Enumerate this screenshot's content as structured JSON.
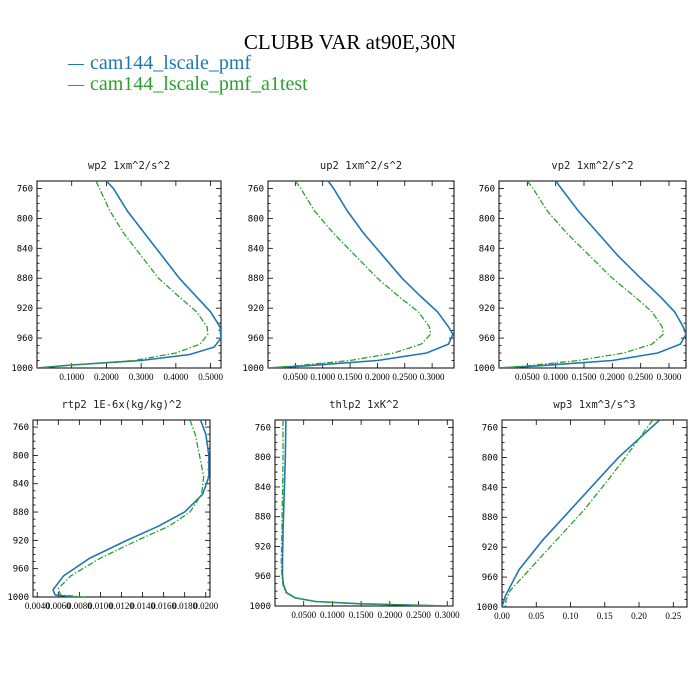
{
  "title": "CLUBB VAR at90E,30N",
  "legend": [
    {
      "label": "cam144_lscale_pmf",
      "color": "#1f77b4"
    },
    {
      "label": "cam144_lscale_pmf_a1test",
      "color": "#2ca02c"
    }
  ],
  "chart_data": [
    {
      "type": "line",
      "title": "wp2  1xm^2/s^2",
      "ylim": [
        1000,
        750
      ],
      "yticks": [
        "760",
        "800",
        "840",
        "880",
        "920",
        "960",
        "1000"
      ],
      "xlim": [
        0,
        0.53
      ],
      "xticks": [
        "0.1000",
        "0.2000",
        "0.3000",
        "0.4000",
        "0.5000"
      ],
      "series": [
        {
          "name": "cam144_lscale_pmf",
          "x": [
            0.2,
            0.22,
            0.26,
            0.31,
            0.36,
            0.41,
            0.46,
            0.5,
            0.527,
            0.53,
            0.51,
            0.44,
            0.3,
            0.1,
            0.0
          ],
          "y": [
            750,
            760,
            790,
            820,
            850,
            880,
            905,
            925,
            945,
            960,
            972,
            982,
            990,
            996,
            1000
          ]
        },
        {
          "name": "cam144_lscale_pmf_a1test",
          "x": [
            0.17,
            0.18,
            0.21,
            0.25,
            0.3,
            0.35,
            0.41,
            0.46,
            0.49,
            0.492,
            0.47,
            0.4,
            0.28,
            0.1,
            0.0
          ],
          "y": [
            750,
            760,
            790,
            820,
            850,
            880,
            905,
            925,
            945,
            955,
            968,
            980,
            990,
            996,
            1000
          ]
        }
      ]
    },
    {
      "type": "line",
      "title": "up2  1xm^2/s^2",
      "ylim": [
        1000,
        750
      ],
      "yticks": [
        "760",
        "800",
        "840",
        "880",
        "920",
        "960",
        "1000"
      ],
      "xlim": [
        0,
        0.34
      ],
      "xticks": [
        "0.0500",
        "0.1000",
        "0.1500",
        "0.2000",
        "0.2500",
        "0.3000"
      ],
      "series": [
        {
          "name": "cam144_lscale_pmf",
          "x": [
            0.11,
            0.12,
            0.145,
            0.175,
            0.21,
            0.245,
            0.28,
            0.31,
            0.33,
            0.338,
            0.33,
            0.29,
            0.2,
            0.07,
            0.0
          ],
          "y": [
            750,
            760,
            790,
            820,
            850,
            880,
            905,
            925,
            945,
            955,
            968,
            980,
            990,
            997,
            1000
          ]
        },
        {
          "name": "cam144_lscale_pmf_a1test",
          "x": [
            0.05,
            0.06,
            0.085,
            0.12,
            0.16,
            0.2,
            0.24,
            0.275,
            0.295,
            0.297,
            0.28,
            0.23,
            0.15,
            0.05,
            0.0
          ],
          "y": [
            750,
            760,
            790,
            820,
            850,
            880,
            905,
            925,
            945,
            955,
            968,
            980,
            990,
            997,
            1000
          ]
        }
      ]
    },
    {
      "type": "line",
      "title": "vp2  1xm^2/s^2",
      "ylim": [
        1000,
        750
      ],
      "yticks": [
        "760",
        "800",
        "840",
        "880",
        "920",
        "960",
        "1000"
      ],
      "xlim": [
        0,
        0.33
      ],
      "xticks": [
        "0.0500",
        "0.1000",
        "0.1500",
        "0.2000",
        "0.2500",
        "0.3000"
      ],
      "series": [
        {
          "name": "cam144_lscale_pmf",
          "x": [
            0.1,
            0.11,
            0.14,
            0.175,
            0.21,
            0.25,
            0.285,
            0.31,
            0.325,
            0.33,
            0.32,
            0.28,
            0.2,
            0.07,
            0.0
          ],
          "y": [
            750,
            760,
            790,
            820,
            850,
            880,
            905,
            925,
            945,
            955,
            968,
            980,
            990,
            997,
            1000
          ]
        },
        {
          "name": "cam144_lscale_pmf_a1test",
          "x": [
            0.05,
            0.06,
            0.085,
            0.12,
            0.16,
            0.2,
            0.24,
            0.27,
            0.288,
            0.29,
            0.27,
            0.22,
            0.14,
            0.05,
            0.0
          ],
          "y": [
            750,
            760,
            790,
            820,
            850,
            880,
            905,
            925,
            945,
            955,
            968,
            980,
            990,
            997,
            1000
          ]
        }
      ]
    },
    {
      "type": "line",
      "title": "rtp2  1E-6x(kg/kg)^2",
      "ylim": [
        1000,
        750
      ],
      "yticks": [
        "760",
        "800",
        "840",
        "880",
        "920",
        "960",
        "1000"
      ],
      "xlim": [
        0.0036,
        0.0204
      ],
      "xticks": [
        "0.0040",
        "0.0060",
        "0.0080",
        "0.0100",
        "0.0120",
        "0.0140",
        "0.0160",
        "0.0180",
        "0.0200"
      ],
      "series": [
        {
          "name": "cam144_lscale_pmf",
          "x": [
            0.0195,
            0.02,
            0.0203,
            0.0203,
            0.0197,
            0.018,
            0.0155,
            0.0125,
            0.009,
            0.0065,
            0.0055,
            0.0057,
            0.0075
          ],
          "y": [
            750,
            770,
            800,
            830,
            855,
            880,
            900,
            920,
            945,
            970,
            990,
            997,
            1000
          ]
        },
        {
          "name": "cam144_lscale_pmf_a1test",
          "x": [
            0.0185,
            0.019,
            0.0194,
            0.0198,
            0.0196,
            0.0185,
            0.0165,
            0.0135,
            0.01,
            0.0072,
            0.006,
            0.0062,
            0.0085
          ],
          "y": [
            750,
            770,
            800,
            830,
            855,
            880,
            900,
            920,
            945,
            970,
            988,
            997,
            1000
          ]
        }
      ]
    },
    {
      "type": "line",
      "title": "thlp2  1xK^2",
      "ylim": [
        1000,
        750
      ],
      "yticks": [
        "760",
        "800",
        "840",
        "880",
        "920",
        "960",
        "1000"
      ],
      "xlim": [
        0,
        0.31
      ],
      "xticks": [
        "0.0500",
        "0.1000",
        "0.1500",
        "0.2000",
        "0.2500",
        "0.3000"
      ],
      "series": [
        {
          "name": "cam144_lscale_pmf",
          "x": [
            0.019,
            0.018,
            0.016,
            0.014,
            0.013,
            0.013,
            0.015,
            0.02,
            0.035,
            0.07,
            0.15,
            0.3
          ],
          "y": [
            750,
            800,
            850,
            900,
            940,
            960,
            972,
            982,
            989,
            994,
            997,
            1000
          ]
        },
        {
          "name": "cam144_lscale_pmf_a1test",
          "x": [
            0.014,
            0.014,
            0.013,
            0.012,
            0.011,
            0.012,
            0.014,
            0.019,
            0.034,
            0.07,
            0.15,
            0.3
          ],
          "y": [
            750,
            800,
            850,
            900,
            940,
            960,
            972,
            982,
            989,
            994,
            997,
            1000
          ]
        }
      ]
    },
    {
      "type": "line",
      "title": "wp3  1xm^3/s^3",
      "ylim": [
        1000,
        750
      ],
      "yticks": [
        "760",
        "800",
        "840",
        "880",
        "920",
        "960",
        "1000"
      ],
      "xlim": [
        0,
        0.27
      ],
      "xticks": [
        "0.00",
        "0.05",
        "0.10",
        "0.15",
        "0.20",
        "0.25"
      ],
      "series": [
        {
          "name": "cam144_lscale_pmf",
          "x": [
            0.23,
            0.2,
            0.17,
            0.14,
            0.1,
            0.06,
            0.025,
            0.005,
            0.0
          ],
          "y": [
            750,
            775,
            800,
            830,
            870,
            910,
            950,
            985,
            1000
          ]
        },
        {
          "name": "cam144_lscale_pmf_a1test",
          "x": [
            0.22,
            0.2,
            0.18,
            0.155,
            0.12,
            0.08,
            0.04,
            0.012,
            0.006,
            0.005
          ],
          "y": [
            750,
            775,
            800,
            830,
            870,
            910,
            950,
            978,
            990,
            1000
          ]
        }
      ]
    }
  ]
}
